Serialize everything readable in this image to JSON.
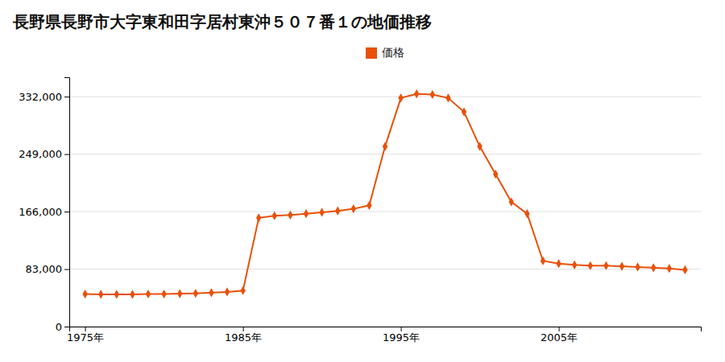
{
  "chart_data": {
    "type": "line",
    "title": "長野県長野市大字東和田字居村東沖５０７番１の地価推移",
    "x": [
      1975,
      1976,
      1977,
      1978,
      1979,
      1980,
      1981,
      1982,
      1983,
      1984,
      1985,
      1986,
      1987,
      1988,
      1989,
      1990,
      1991,
      1992,
      1993,
      1994,
      1995,
      1996,
      1997,
      1998,
      1999,
      2000,
      2001,
      2002,
      2003,
      2004,
      2005,
      2006,
      2007,
      2008,
      2009,
      2010,
      2011,
      2012,
      2013
    ],
    "series": [
      {
        "name": "価格",
        "color": "#e8510a",
        "marker": "diamond",
        "values": [
          47000,
          46500,
          46500,
          46500,
          47000,
          47000,
          47500,
          48000,
          49000,
          50000,
          52000,
          157000,
          160000,
          161000,
          163000,
          165000,
          167000,
          170000,
          175000,
          260000,
          330000,
          336000,
          335000,
          330000,
          310000,
          260000,
          220000,
          180000,
          163000,
          95000,
          91000,
          89000,
          88000,
          88000,
          87000,
          86000,
          85000,
          84000,
          82000
        ]
      }
    ],
    "xlim": [
      1974,
      2014
    ],
    "xticks": [
      {
        "value": 1975,
        "label": "1975年"
      },
      {
        "value": 1985,
        "label": "1985年"
      },
      {
        "value": 1995,
        "label": "1995年"
      },
      {
        "value": 2005,
        "label": "2005年"
      }
    ],
    "ylim": [
      0,
      360000
    ],
    "yticks": [
      0,
      {
        "value": 83000,
        "label": "83,000"
      },
      {
        "value": 166000,
        "label": "166,000"
      },
      {
        "value": 249000,
        "label": "249,000"
      },
      {
        "value": 332000,
        "label": "332,000"
      }
    ],
    "grid": true,
    "legend": "top"
  }
}
